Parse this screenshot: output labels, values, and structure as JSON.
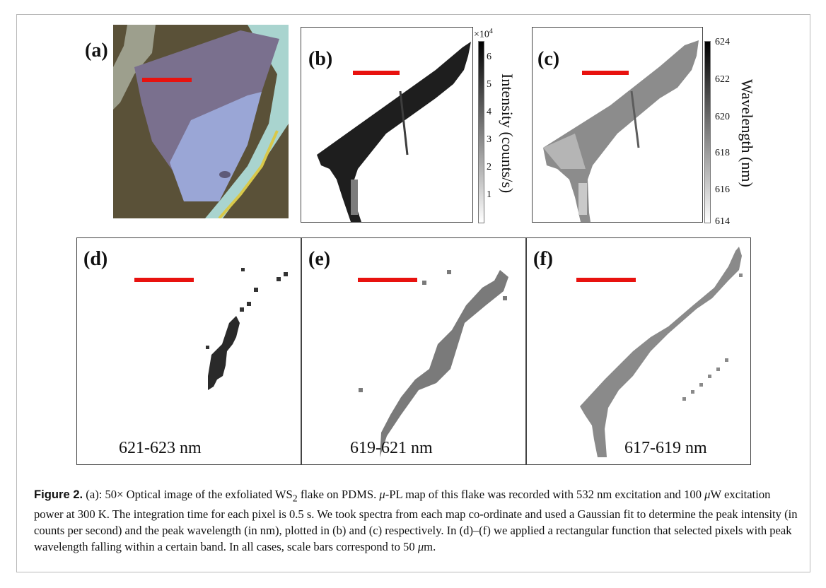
{
  "panels": {
    "a": {
      "label": "(a)"
    },
    "b": {
      "label": "(b)",
      "colorbar": {
        "multiplier_base": "×10",
        "multiplier_exp": "4",
        "ticks": [
          "6",
          "5",
          "4",
          "3",
          "2",
          "1"
        ],
        "title": "Intensity (counts/s)"
      }
    },
    "c": {
      "label": "(c)",
      "colorbar": {
        "ticks": [
          "624",
          "622",
          "620",
          "618",
          "616",
          "614"
        ],
        "title": "Wavelength (nm)"
      }
    },
    "d": {
      "label": "(d)",
      "band": "621-623 nm"
    },
    "e": {
      "label": "(e)",
      "band": "619-621 nm"
    },
    "f": {
      "label": "(f)",
      "band": "617-619 nm"
    }
  },
  "colors": {
    "scale_bar": "#e8120f",
    "optical_bg": "#5a5138",
    "flake": "#7a708e",
    "thin_layer": "#9aa6d6"
  },
  "caption": {
    "fig_label": "Figure 2.",
    "part1": " (a): 50× Optical image of the exfoliated WS",
    "sub": "2",
    "part2": " flake on PDMS. ",
    "mu1": "μ",
    "part3": "-PL map of this flake was recorded with 532 nm excitation and 100 ",
    "mu2": "μ",
    "part4": "W excitation power at 300 K. The integration time for each pixel is 0.5 s. We took spectra from each map co-ordinate and used a Gaussian fit to determine the peak intensity (in counts per second) and the peak wavelength (in nm), plotted in (b) and (c) respectively. In (d)–(f) we applied a rectangular function that selected pixels with peak wavelength falling within a certain band. In all cases, scale bars correspond to 50 ",
    "mu3": "μ",
    "part5": "m."
  }
}
